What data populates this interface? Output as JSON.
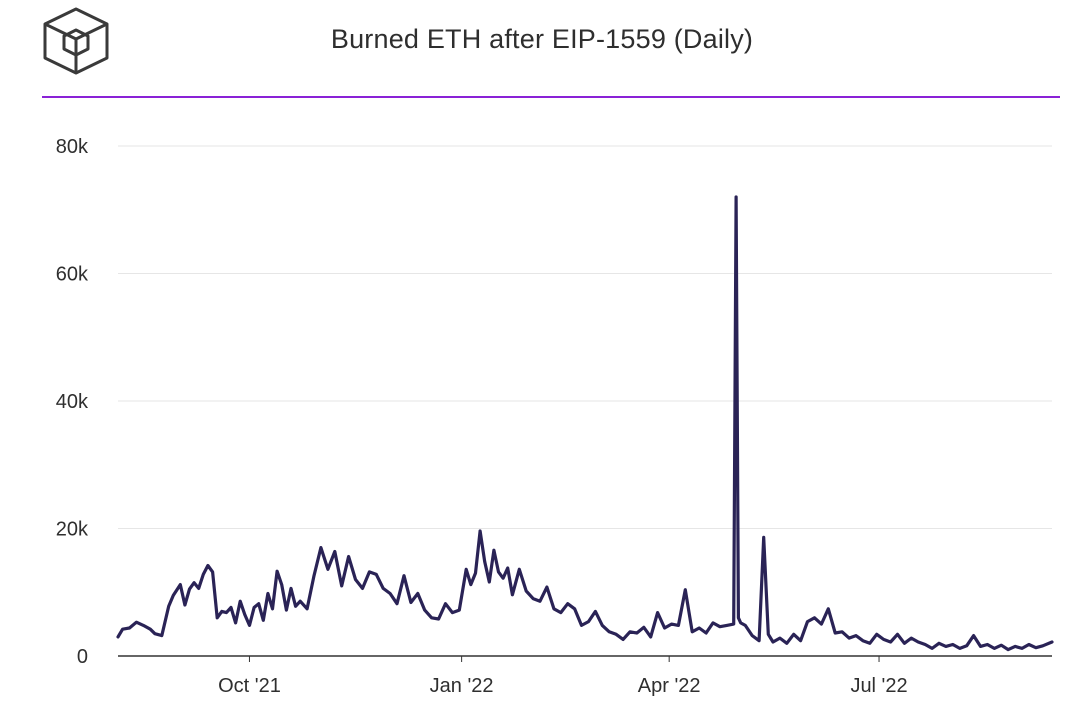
{
  "header": {
    "title": "Burned ETH after EIP-1559 (Daily)",
    "logo_icon": "the-block-cube-icon"
  },
  "colors": {
    "line": "#2a2356",
    "grid": "#e6e6e6",
    "accent": "#8a22d6",
    "axis": "#333333"
  },
  "chart_data": {
    "type": "line",
    "title": "Burned ETH after EIP-1559 (Daily)",
    "xlabel": "",
    "ylabel": "",
    "x_range": [
      "2021-08-05",
      "2022-09-14"
    ],
    "ylim": [
      0,
      80000
    ],
    "yticks": [
      0,
      20000,
      40000,
      60000,
      80000
    ],
    "ytick_labels": [
      "0",
      "20k",
      "40k",
      "60k",
      "80k"
    ],
    "xticks": [
      "2021-10-01",
      "2022-01-01",
      "2022-04-01",
      "2022-07-01"
    ],
    "xtick_labels": [
      "Oct '21",
      "Jan '22",
      "Apr '22",
      "Jul '22"
    ],
    "grid": true,
    "legend": "none",
    "series": [
      {
        "x": [
          "2021-08-05",
          "2021-08-07",
          "2021-08-10",
          "2021-08-13",
          "2021-08-16",
          "2021-08-19",
          "2021-08-21",
          "2021-08-24",
          "2021-08-27",
          "2021-08-29",
          "2021-09-01",
          "2021-09-03",
          "2021-09-05",
          "2021-09-07",
          "2021-09-09",
          "2021-09-11",
          "2021-09-13",
          "2021-09-15",
          "2021-09-17",
          "2021-09-19",
          "2021-09-21",
          "2021-09-23",
          "2021-09-25",
          "2021-09-27",
          "2021-09-29",
          "2021-10-01",
          "2021-10-03",
          "2021-10-05",
          "2021-10-07",
          "2021-10-09",
          "2021-10-11",
          "2021-10-13",
          "2021-10-15",
          "2021-10-17",
          "2021-10-19",
          "2021-10-21",
          "2021-10-23",
          "2021-10-26",
          "2021-10-29",
          "2021-11-01",
          "2021-11-04",
          "2021-11-07",
          "2021-11-10",
          "2021-11-13",
          "2021-11-16",
          "2021-11-19",
          "2021-11-22",
          "2021-11-25",
          "2021-11-28",
          "2021-12-01",
          "2021-12-04",
          "2021-12-07",
          "2021-12-10",
          "2021-12-13",
          "2021-12-16",
          "2021-12-19",
          "2021-12-22",
          "2021-12-25",
          "2021-12-28",
          "2021-12-31",
          "2022-01-03",
          "2022-01-05",
          "2022-01-07",
          "2022-01-09",
          "2022-01-11",
          "2022-01-13",
          "2022-01-15",
          "2022-01-17",
          "2022-01-19",
          "2022-01-21",
          "2022-01-23",
          "2022-01-26",
          "2022-01-29",
          "2022-02-01",
          "2022-02-04",
          "2022-02-07",
          "2022-02-10",
          "2022-02-13",
          "2022-02-16",
          "2022-02-19",
          "2022-02-22",
          "2022-02-25",
          "2022-02-28",
          "2022-03-03",
          "2022-03-06",
          "2022-03-09",
          "2022-03-12",
          "2022-03-15",
          "2022-03-18",
          "2022-03-21",
          "2022-03-24",
          "2022-03-27",
          "2022-03-30",
          "2022-04-02",
          "2022-04-05",
          "2022-04-08",
          "2022-04-11",
          "2022-04-14",
          "2022-04-17",
          "2022-04-20",
          "2022-04-23",
          "2022-04-26",
          "2022-04-29",
          "2022-04-30",
          "2022-05-01",
          "2022-05-02",
          "2022-05-04",
          "2022-05-07",
          "2022-05-10",
          "2022-05-12",
          "2022-05-14",
          "2022-05-16",
          "2022-05-19",
          "2022-05-22",
          "2022-05-25",
          "2022-05-28",
          "2022-05-31",
          "2022-06-03",
          "2022-06-06",
          "2022-06-09",
          "2022-06-12",
          "2022-06-15",
          "2022-06-18",
          "2022-06-21",
          "2022-06-24",
          "2022-06-27",
          "2022-06-30",
          "2022-07-03",
          "2022-07-06",
          "2022-07-09",
          "2022-07-12",
          "2022-07-15",
          "2022-07-18",
          "2022-07-21",
          "2022-07-24",
          "2022-07-27",
          "2022-07-30",
          "2022-08-02",
          "2022-08-05",
          "2022-08-08",
          "2022-08-11",
          "2022-08-14",
          "2022-08-17",
          "2022-08-20",
          "2022-08-23",
          "2022-08-26",
          "2022-08-29",
          "2022-09-01",
          "2022-09-04",
          "2022-09-07",
          "2022-09-10",
          "2022-09-14"
        ],
        "y": [
          3000,
          4200,
          4400,
          5300,
          4800,
          4200,
          3500,
          3200,
          7800,
          9500,
          11200,
          8000,
          10500,
          11500,
          10600,
          12800,
          14200,
          13200,
          6000,
          7000,
          6800,
          7600,
          5200,
          8600,
          6500,
          4800,
          7600,
          8200,
          5600,
          9800,
          7400,
          13300,
          11200,
          7200,
          10600,
          7800,
          8600,
          7400,
          12600,
          17000,
          13600,
          16400,
          11000,
          15600,
          12000,
          10600,
          13200,
          12800,
          10600,
          9800,
          8200,
          12600,
          8400,
          9800,
          7200,
          6000,
          5800,
          8200,
          6800,
          7200,
          13600,
          11200,
          13000,
          19600,
          14800,
          11600,
          16600,
          13200,
          12200,
          13800,
          9600,
          13600,
          10200,
          9000,
          8600,
          10800,
          7400,
          6800,
          8200,
          7400,
          4800,
          5400,
          7000,
          4800,
          3800,
          3400,
          2600,
          3800,
          3600,
          4500,
          3000,
          6800,
          4400,
          5000,
          4800,
          10400,
          3800,
          4400,
          3600,
          5200,
          4600,
          4800,
          5000,
          72000,
          6000,
          5200,
          4800,
          3200,
          2400,
          18600,
          3400,
          2200,
          2800,
          2000,
          3400,
          2400,
          5400,
          6000,
          5000,
          7400,
          3600,
          3800,
          2800,
          3200,
          2400,
          2000,
          3400,
          2600,
          2200,
          3400,
          2000,
          2800,
          2200,
          1800,
          1200,
          2000,
          1500,
          1800,
          1200,
          1600,
          3200,
          1500,
          1800,
          1200,
          1700,
          1000,
          1500,
          1200,
          1800,
          1300,
          1600,
          2200
        ]
      }
    ]
  }
}
